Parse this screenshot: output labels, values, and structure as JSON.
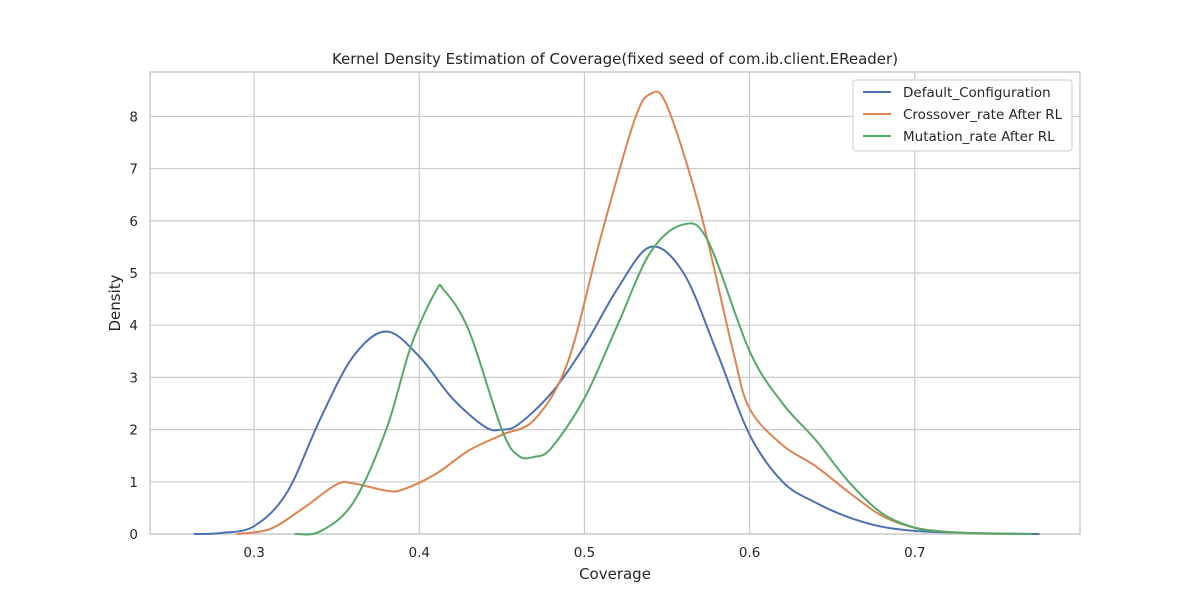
{
  "chart_data": {
    "type": "line",
    "title": "Kernel Density Estimation of Coverage(fixed seed of com.ib.client.EReader)",
    "xlabel": "Coverage",
    "ylabel": "Density",
    "xlim": [
      0.237,
      0.8
    ],
    "ylim": [
      0,
      8.85
    ],
    "xticks": [
      0.3,
      0.4,
      0.5,
      0.6,
      0.7
    ],
    "xtick_labels": [
      "0.3",
      "0.4",
      "0.5",
      "0.6",
      "0.7"
    ],
    "yticks": [
      0,
      1,
      2,
      3,
      4,
      5,
      6,
      7,
      8
    ],
    "ytick_labels": [
      "0",
      "1",
      "2",
      "3",
      "4",
      "5",
      "6",
      "7",
      "8"
    ],
    "grid": true,
    "legend_position": "top-right",
    "series": [
      {
        "name": "Default_Configuration",
        "color": "#4c72b0",
        "points": [
          [
            0.264,
            0.0
          ],
          [
            0.28,
            0.02
          ],
          [
            0.3,
            0.15
          ],
          [
            0.32,
            0.8
          ],
          [
            0.34,
            2.2
          ],
          [
            0.36,
            3.4
          ],
          [
            0.38,
            3.88
          ],
          [
            0.4,
            3.4
          ],
          [
            0.42,
            2.6
          ],
          [
            0.44,
            2.05
          ],
          [
            0.45,
            2.0
          ],
          [
            0.46,
            2.1
          ],
          [
            0.48,
            2.7
          ],
          [
            0.5,
            3.6
          ],
          [
            0.52,
            4.7
          ],
          [
            0.54,
            5.5
          ],
          [
            0.56,
            5.0
          ],
          [
            0.58,
            3.5
          ],
          [
            0.6,
            1.9
          ],
          [
            0.62,
            1.0
          ],
          [
            0.64,
            0.6
          ],
          [
            0.66,
            0.32
          ],
          [
            0.68,
            0.14
          ],
          [
            0.7,
            0.06
          ],
          [
            0.72,
            0.03
          ],
          [
            0.75,
            0.01
          ],
          [
            0.775,
            0.0
          ]
        ]
      },
      {
        "name": "Crossover_rate After RL",
        "color": "#dd8452",
        "points": [
          [
            0.29,
            0.0
          ],
          [
            0.31,
            0.1
          ],
          [
            0.33,
            0.5
          ],
          [
            0.35,
            0.95
          ],
          [
            0.36,
            0.97
          ],
          [
            0.38,
            0.83
          ],
          [
            0.39,
            0.85
          ],
          [
            0.41,
            1.15
          ],
          [
            0.43,
            1.6
          ],
          [
            0.45,
            1.9
          ],
          [
            0.47,
            2.2
          ],
          [
            0.49,
            3.3
          ],
          [
            0.51,
            5.7
          ],
          [
            0.53,
            7.9
          ],
          [
            0.54,
            8.43
          ],
          [
            0.55,
            8.2
          ],
          [
            0.57,
            6.2
          ],
          [
            0.59,
            3.5
          ],
          [
            0.6,
            2.4
          ],
          [
            0.62,
            1.7
          ],
          [
            0.64,
            1.3
          ],
          [
            0.66,
            0.8
          ],
          [
            0.68,
            0.35
          ],
          [
            0.7,
            0.12
          ],
          [
            0.72,
            0.04
          ],
          [
            0.74,
            0.01
          ],
          [
            0.76,
            0.0
          ]
        ]
      },
      {
        "name": "Mutation_rate After RL",
        "color": "#55a868",
        "points": [
          [
            0.325,
            0.0
          ],
          [
            0.34,
            0.05
          ],
          [
            0.36,
            0.6
          ],
          [
            0.38,
            2.0
          ],
          [
            0.395,
            3.6
          ],
          [
            0.41,
            4.65
          ],
          [
            0.415,
            4.67
          ],
          [
            0.43,
            3.9
          ],
          [
            0.45,
            2.0
          ],
          [
            0.46,
            1.5
          ],
          [
            0.47,
            1.48
          ],
          [
            0.48,
            1.65
          ],
          [
            0.5,
            2.6
          ],
          [
            0.52,
            4.0
          ],
          [
            0.54,
            5.4
          ],
          [
            0.56,
            5.93
          ],
          [
            0.575,
            5.6
          ],
          [
            0.6,
            3.5
          ],
          [
            0.62,
            2.5
          ],
          [
            0.64,
            1.8
          ],
          [
            0.66,
            1.0
          ],
          [
            0.68,
            0.4
          ],
          [
            0.7,
            0.12
          ],
          [
            0.72,
            0.04
          ],
          [
            0.74,
            0.01
          ],
          [
            0.77,
            0.0
          ]
        ]
      }
    ]
  }
}
